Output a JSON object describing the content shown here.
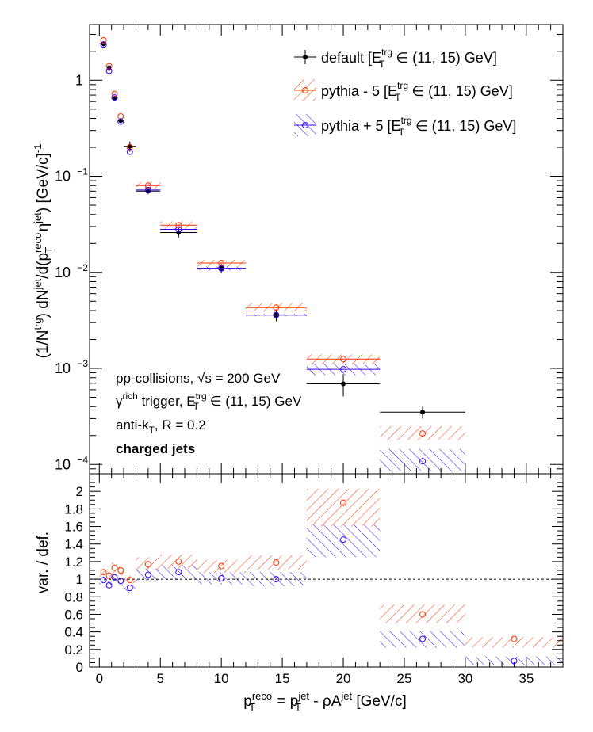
{
  "chart_data": {
    "type": "scatter",
    "panels": [
      {
        "name": "top",
        "yscale": "log",
        "ylim": [
          8e-05,
          3.8
        ],
        "xlim": [
          -0.8,
          38
        ],
        "ylabel_parts": {
          "a": "(1/N",
          "b": "trg",
          "c": ") dN",
          "d": "jet",
          "e": "/d(p",
          "f": "reco",
          "g": "T",
          "h": " η",
          "i": "jet",
          "j": ") [GeV/c]",
          "k": "-1"
        },
        "ytick_labels": [
          {
            "v": 0.0001,
            "m": "10",
            "e": "−4"
          },
          {
            "v": 0.001,
            "m": "10",
            "e": "−3"
          },
          {
            "v": 0.01,
            "m": "10",
            "e": "−2"
          },
          {
            "v": 0.1,
            "m": "10",
            "e": "−1"
          },
          {
            "v": 1,
            "m": "1",
            "e": ""
          }
        ]
      },
      {
        "name": "ratio",
        "yscale": "linear",
        "ylim": [
          0,
          2.2
        ],
        "xlim": [
          -0.8,
          38
        ],
        "ylabel": "var. / def.",
        "ytick_labels": [
          "0",
          "0.2",
          "0.4",
          "0.6",
          "0.8",
          "1",
          "1.2",
          "1.4",
          "1.6",
          "1.8",
          "2"
        ],
        "reference_line": 1
      }
    ],
    "xlabel_parts": {
      "p": "p",
      "sup1": "reco",
      "sub1": "T",
      "eq": " = p",
      "sup2": "jet",
      "sub2": "T",
      "rest": " - ρA",
      "sup3": "jet",
      "unit": " [GeV/c]"
    },
    "xtick_labels": [
      "0",
      "5",
      "10",
      "15",
      "20",
      "25",
      "30",
      "35"
    ],
    "bins": [
      [
        0,
        0.6
      ],
      [
        0.6,
        1
      ],
      [
        1,
        1.5
      ],
      [
        1.5,
        2
      ],
      [
        2,
        3
      ],
      [
        3,
        5
      ],
      [
        5,
        8
      ],
      [
        8,
        12
      ],
      [
        12,
        17
      ],
      [
        17,
        23
      ],
      [
        23,
        30
      ],
      [
        30,
        38
      ]
    ],
    "x": [
      0.35,
      0.8,
      1.25,
      1.75,
      2.5,
      4,
      6.5,
      10,
      14.5,
      20,
      26.5,
      34
    ],
    "series": [
      {
        "name": "default",
        "color": "#000000",
        "marker": "filled-circle",
        "values": [
          2.4,
          1.35,
          0.65,
          0.38,
          0.205,
          0.07,
          0.026,
          0.011,
          0.0036,
          0.00069,
          0.00035,
          null
        ],
        "yerr": [
          0.15,
          0.08,
          0.04,
          0.025,
          0.025,
          0.005,
          0.003,
          0.0012,
          0.0005,
          0.00018,
          5e-05,
          null
        ]
      },
      {
        "name": "pythia - 5",
        "color": "#ff3300",
        "marker": "open-circle",
        "band": "hatch-diagonal",
        "values": [
          2.6,
          1.4,
          0.72,
          0.42,
          0.2,
          0.08,
          0.031,
          0.0125,
          0.0043,
          0.00125,
          0.00021,
          null
        ],
        "ratio": [
          1.08,
          1.04,
          1.13,
          1.1,
          0.99,
          1.17,
          1.2,
          1.15,
          1.19,
          1.87,
          0.6,
          0.32
        ],
        "ratio_band": [
          [
            1.0,
            1.14
          ],
          [
            1.0,
            1.1
          ],
          [
            1.06,
            1.19
          ],
          [
            1.04,
            1.16
          ],
          [
            0.95,
            1.04
          ],
          [
            1.1,
            1.25
          ],
          [
            1.12,
            1.28
          ],
          [
            1.07,
            1.22
          ],
          [
            1.11,
            1.27
          ],
          [
            1.6,
            2.03
          ],
          [
            0.5,
            0.71
          ],
          [
            0.22,
            0.34
          ]
        ]
      },
      {
        "name": "pythia + 5",
        "color": "#3300ff",
        "marker": "open-circle",
        "band": "hatch-diagonal",
        "values": [
          2.35,
          1.25,
          0.66,
          0.37,
          0.18,
          0.072,
          0.028,
          0.011,
          0.0036,
          0.00098,
          0.000108,
          null
        ],
        "ratio": [
          0.99,
          0.93,
          1.02,
          0.98,
          0.9,
          1.05,
          1.08,
          1.01,
          1.0,
          1.45,
          0.32,
          0.07
        ],
        "ratio_band": [
          [
            0.94,
            1.03
          ],
          [
            0.88,
            0.98
          ],
          [
            0.97,
            1.06
          ],
          [
            0.93,
            1.02
          ],
          [
            0.84,
            0.94
          ],
          [
            0.98,
            1.12
          ],
          [
            0.99,
            1.16
          ],
          [
            0.94,
            1.08
          ],
          [
            0.92,
            1.08
          ],
          [
            1.25,
            1.62
          ],
          [
            0.22,
            0.41
          ],
          [
            0.02,
            0.12
          ]
        ]
      }
    ],
    "bands": {
      "pythia - 5": [
        null,
        null,
        null,
        null,
        null,
        [
          0.074,
          0.088
        ],
        [
          0.028,
          0.034
        ],
        [
          0.0115,
          0.0135
        ],
        [
          0.0039,
          0.0048
        ],
        [
          0.0011,
          0.0014
        ],
        [
          0.00018,
          0.00025
        ],
        null
      ],
      "pythia + 5": [
        null,
        null,
        null,
        null,
        null,
        null,
        null,
        [
          0.0105,
          0.0115
        ],
        [
          0.0035,
          0.0037
        ],
        [
          0.00085,
          0.00112
        ],
        [
          8.5e-05,
          0.000145
        ],
        null
      ]
    },
    "legend": {
      "placement": "top-right",
      "entries": [
        {
          "series": "default",
          "a": "default [E",
          "sup": "trg",
          "sub": "T",
          "b": " ∈ (11, 15) GeV]"
        },
        {
          "series": "pythia - 5",
          "a": "pythia - 5 [E",
          "sup": "trg",
          "sub": "T",
          "b": " ∈ (11, 15) GeV]"
        },
        {
          "series": "pythia + 5",
          "a": "pythia + 5 [E",
          "sup": "trg",
          "sub": "T",
          "b": " ∈ (11, 15) GeV]"
        }
      ]
    },
    "annotations": {
      "line1": "pp-collisions, ",
      "line1_sqrt": "√s",
      "line1_rest": " = 200 GeV",
      "line2_a": "γ",
      "line2_sup": "rich",
      "line2_b": " trigger, E",
      "line2_sup2": "trg",
      "line2_sub2": "T",
      "line2_c": " ∈ (11, 15) GeV",
      "line3_a": "anti-k",
      "line3_sub": "T",
      "line3_b": ", R = 0.2",
      "line4": "charged jets"
    }
  }
}
